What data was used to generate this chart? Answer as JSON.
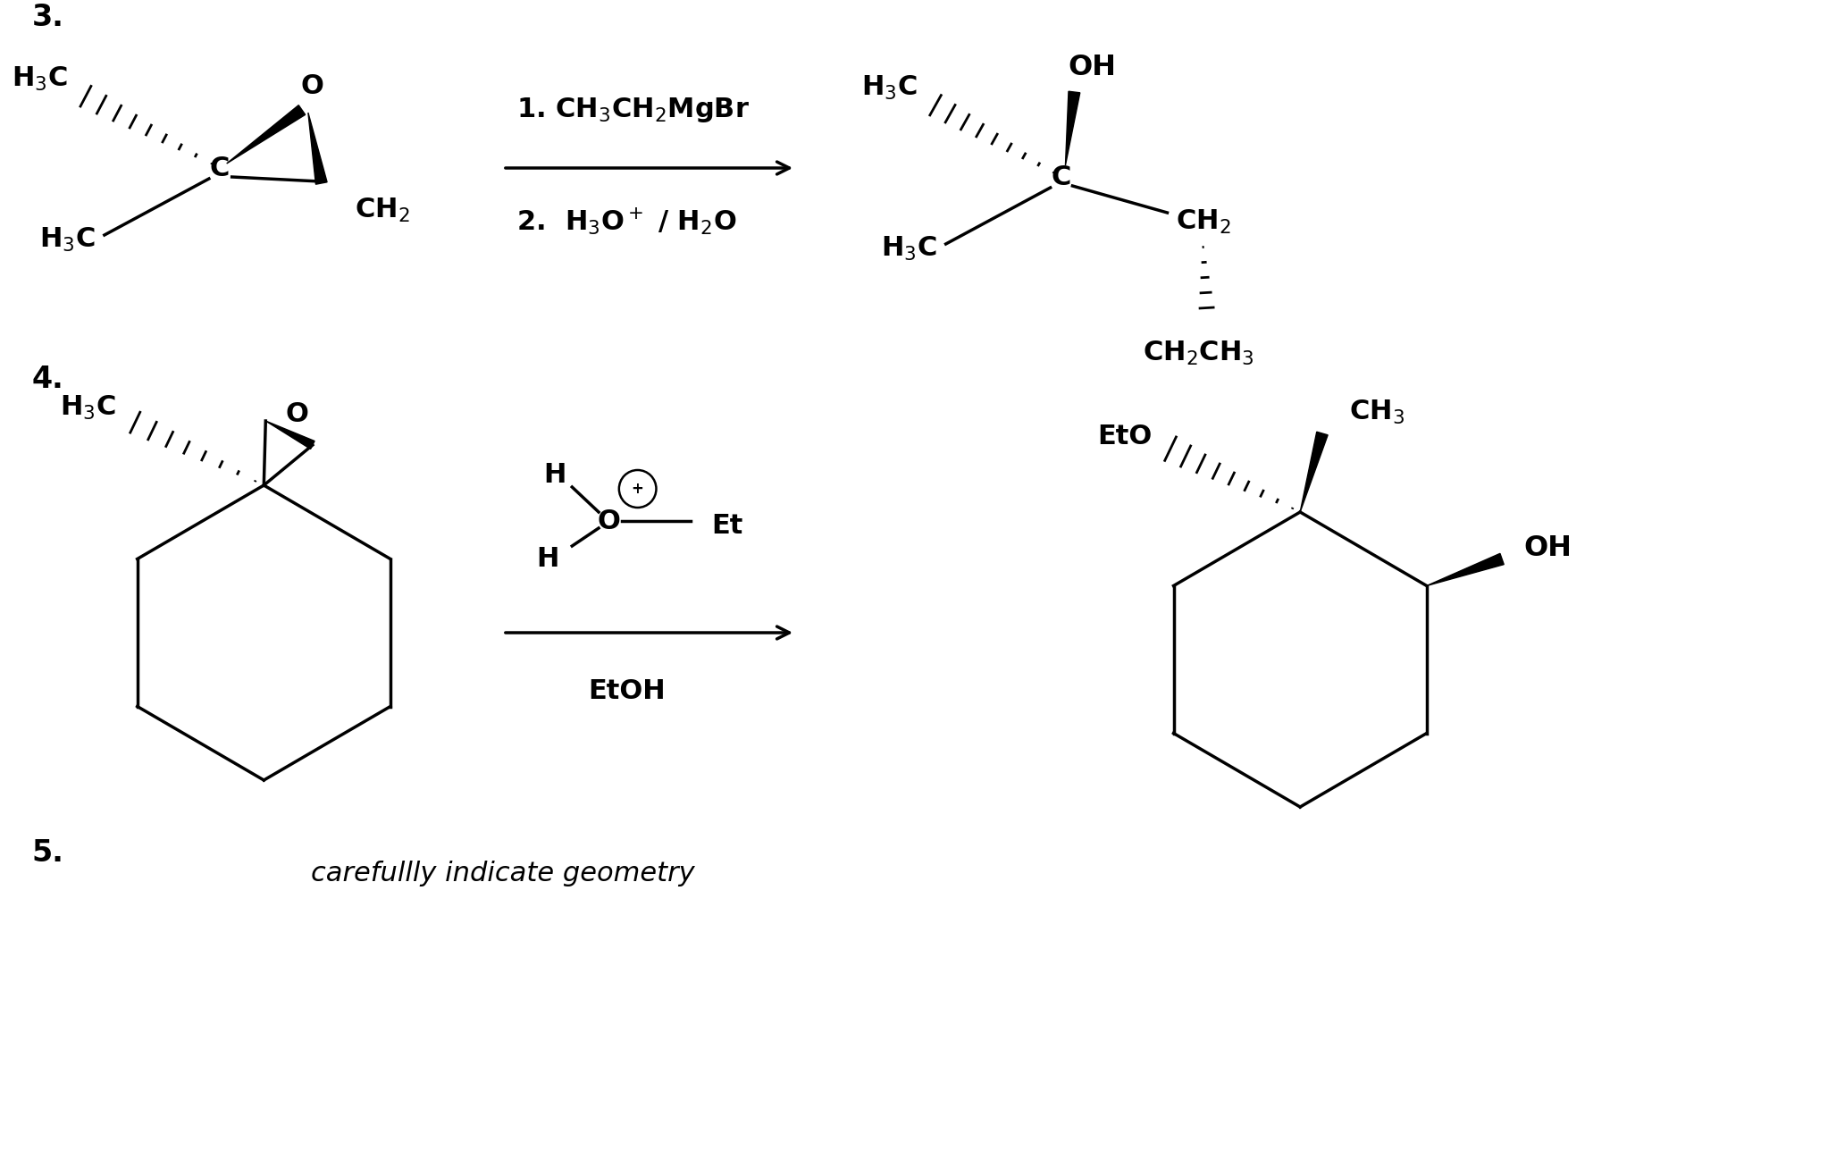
{
  "bg_color": "#ffffff",
  "text_color": "#000000",
  "fig_width": 20.46,
  "fig_height": 12.88,
  "dpi": 100,
  "arrow_color": "#000000",
  "step3_reagent1": "1. CH$_3$CH$_2$MgBr",
  "step3_reagent2": "2.  H$_3$O$^+$ / H$_2$O",
  "step5_note": "carefullly indicate geometry"
}
